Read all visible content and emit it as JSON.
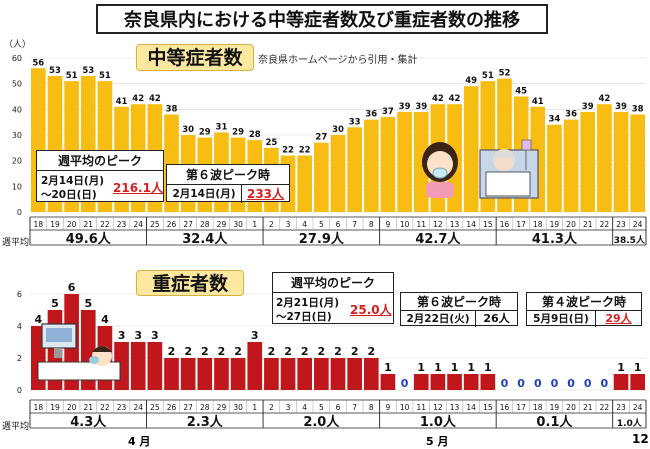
{
  "title": "奈良県内における中等症者数及び重症者数の推移",
  "source_note": "奈良県ホームページから引用・集計",
  "moderate": {
    "heading": "中等症者数",
    "unit_label": "（人）",
    "peak_week_box": {
      "title": "週平均のピーク",
      "dates": "2月14日(月)\n～20日(日)",
      "value": "216.1人"
    },
    "wave6_box": {
      "title": "第６波ピーク時",
      "date": "2月14日(月)",
      "value": "233人"
    },
    "weekly_label": "週平均",
    "weekly_avgs": [
      "49.6人",
      "32.4人",
      "27.9人",
      "42.7人",
      "41.3人",
      "38.5人"
    ]
  },
  "severe": {
    "heading": "重症者数",
    "peak_week_box": {
      "title": "週平均のピーク",
      "dates": "2月21日(月)\n～27日(日)",
      "value": "25.0人"
    },
    "wave6_box": {
      "title": "第６波ピーク時",
      "date": "2月22日(火)",
      "value": "26人"
    },
    "wave4_box": {
      "title": "第４波ピーク時",
      "date": "5月9日(日)",
      "value": "29人"
    },
    "weekly_label": "週平均",
    "weekly_avgs": [
      "4.3人",
      "2.3人",
      "2.0人",
      "1.0人",
      "0.1人",
      "1.0人"
    ],
    "month_labels": [
      "4 月",
      "5 月",
      "12"
    ]
  },
  "colors": {
    "moderate_bar": "#f7bd12",
    "severe_bar": "#c0171c",
    "zero_label": "#1f3fbf",
    "panel_title_bg": "#fde8a0"
  },
  "chart_data": [
    {
      "type": "bar",
      "title": "中等症者数",
      "ylabel": "（人）",
      "ylim": [
        0,
        60
      ],
      "yticks": [
        0,
        10,
        20,
        30,
        40,
        50,
        60
      ],
      "categories": [
        "18",
        "19",
        "20",
        "21",
        "22",
        "23",
        "24",
        "25",
        "26",
        "27",
        "28",
        "29",
        "30",
        "1",
        "2",
        "3",
        "4",
        "5",
        "6",
        "7",
        "8",
        "9",
        "10",
        "11",
        "12",
        "13",
        "14",
        "15",
        "16",
        "17",
        "18",
        "19",
        "20",
        "21",
        "22",
        "23",
        "24"
      ],
      "values": [
        56,
        53,
        51,
        53,
        51,
        41,
        42,
        42,
        38,
        30,
        29,
        31,
        29,
        28,
        25,
        22,
        22,
        27,
        30,
        33,
        36,
        37,
        39,
        39,
        42,
        42,
        49,
        51,
        52,
        45,
        41,
        34,
        36,
        39,
        42,
        39,
        38
      ]
    },
    {
      "type": "bar",
      "title": "重症者数",
      "ylim": [
        0,
        6
      ],
      "yticks": [
        0,
        2,
        4,
        6
      ],
      "categories": [
        "18",
        "19",
        "20",
        "21",
        "22",
        "23",
        "24",
        "25",
        "26",
        "27",
        "28",
        "29",
        "30",
        "1",
        "2",
        "3",
        "4",
        "5",
        "6",
        "7",
        "8",
        "9",
        "10",
        "11",
        "12",
        "13",
        "14",
        "15",
        "16",
        "17",
        "18",
        "19",
        "20",
        "21",
        "22",
        "23",
        "24"
      ],
      "values": [
        4,
        5,
        6,
        5,
        4,
        3,
        3,
        3,
        2,
        2,
        2,
        2,
        2,
        3,
        2,
        2,
        2,
        2,
        2,
        2,
        2,
        1,
        0,
        1,
        1,
        1,
        1,
        1,
        0,
        0,
        0,
        0,
        0,
        0,
        0,
        1,
        1
      ]
    }
  ]
}
